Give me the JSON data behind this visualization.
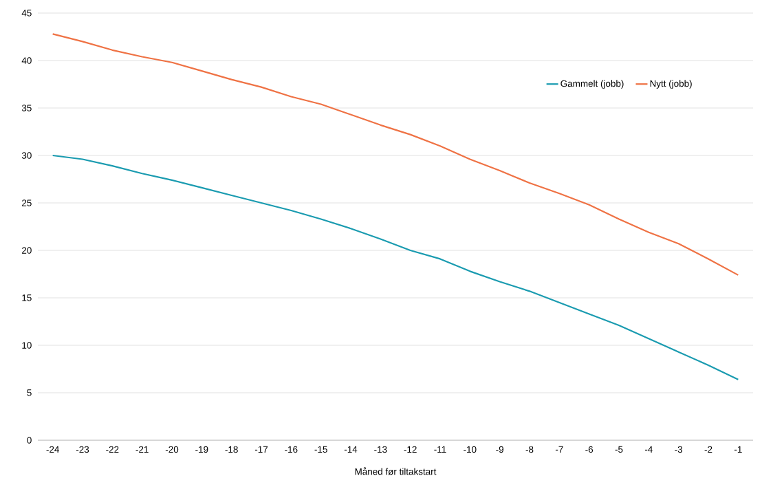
{
  "chart_data": {
    "type": "line",
    "xlabel": "Måned før tiltakstart",
    "categories": [
      "-24",
      "-23",
      "-22",
      "-21",
      "-20",
      "-19",
      "-18",
      "-17",
      "-16",
      "-15",
      "-14",
      "-13",
      "-12",
      "-11",
      "-10",
      "-9",
      "-8",
      "-7",
      "-6",
      "-5",
      "-4",
      "-3",
      "-2",
      "-1"
    ],
    "series": [
      {
        "name": "Gammelt (jobb)",
        "color": "#1a9bb0",
        "values": [
          30.0,
          29.6,
          28.9,
          28.1,
          27.4,
          26.6,
          25.8,
          25.0,
          24.2,
          23.3,
          22.3,
          21.2,
          20.0,
          19.1,
          17.8,
          16.7,
          15.7,
          14.5,
          13.3,
          12.1,
          10.7,
          9.3,
          7.9,
          6.4
        ]
      },
      {
        "name": "Nytt (jobb)",
        "color": "#ef7244",
        "values": [
          42.8,
          42.0,
          41.1,
          40.4,
          39.8,
          38.9,
          38.0,
          37.2,
          36.2,
          35.4,
          34.3,
          33.2,
          32.2,
          31.0,
          29.6,
          28.4,
          27.1,
          26.0,
          24.8,
          23.3,
          21.9,
          20.7,
          19.1,
          17.4
        ]
      }
    ],
    "ylim": [
      0,
      45
    ],
    "yticks": [
      0,
      5,
      10,
      15,
      20,
      25,
      30,
      35,
      40,
      45
    ],
    "grid": "y",
    "legend": "top right",
    "marker": "none",
    "line_style": "solid"
  }
}
